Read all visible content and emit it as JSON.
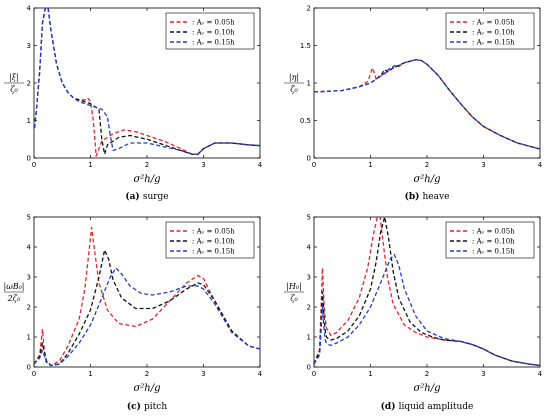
{
  "chart_data": [
    {
      "type": "line",
      "panel": "a",
      "caption_tag": "(a)",
      "caption_text": "surge",
      "xlabel": "σ²h/g",
      "ylabel_top": "|ξ|",
      "ylabel_bottom": "ζ₀",
      "xlim": [
        0,
        4
      ],
      "ylim": [
        0,
        4
      ],
      "xticks": [
        0,
        1,
        2,
        3,
        4
      ],
      "yticks": [
        0,
        1,
        2,
        3,
        4
      ],
      "legend_position": "top-right",
      "series": [
        {
          "name": "Aᵥ = 0.05h",
          "color": "#e0262a",
          "x": [
            0.01,
            0.05,
            0.1,
            0.15,
            0.2,
            0.25,
            0.3,
            0.4,
            0.5,
            0.6,
            0.7,
            0.8,
            0.9,
            0.95,
            1.0,
            1.05,
            1.1,
            1.2,
            1.4,
            1.6,
            1.8,
            2.0,
            2.3,
            2.6,
            2.8,
            2.9,
            3.0,
            3.2,
            3.5,
            3.8,
            4.0
          ],
          "y": [
            0.8,
            1.4,
            2.3,
            3.6,
            4.0,
            4.0,
            3.4,
            2.5,
            2.0,
            1.75,
            1.6,
            1.55,
            1.55,
            1.6,
            1.5,
            1.0,
            0.05,
            0.45,
            0.65,
            0.75,
            0.7,
            0.6,
            0.45,
            0.25,
            0.1,
            0.1,
            0.25,
            0.4,
            0.4,
            0.35,
            0.33
          ]
        },
        {
          "name": "Aᵥ = 0.10h",
          "color": "#111111",
          "x": [
            0.01,
            0.05,
            0.1,
            0.15,
            0.2,
            0.25,
            0.3,
            0.4,
            0.5,
            0.6,
            0.7,
            0.8,
            0.9,
            1.0,
            1.1,
            1.15,
            1.2,
            1.25,
            1.3,
            1.5,
            1.7,
            2.0,
            2.3,
            2.6,
            2.8,
            2.9,
            3.0,
            3.2,
            3.5,
            3.8,
            4.0
          ],
          "y": [
            0.8,
            1.4,
            2.3,
            3.6,
            4.0,
            4.0,
            3.4,
            2.5,
            2.0,
            1.75,
            1.6,
            1.55,
            1.5,
            1.45,
            1.35,
            1.3,
            0.5,
            0.1,
            0.35,
            0.55,
            0.6,
            0.5,
            0.35,
            0.2,
            0.1,
            0.1,
            0.25,
            0.4,
            0.4,
            0.35,
            0.33
          ]
        },
        {
          "name": "Aᵥ = 0.15h",
          "color": "#1f3fc8",
          "x": [
            0.01,
            0.05,
            0.1,
            0.15,
            0.2,
            0.25,
            0.3,
            0.4,
            0.5,
            0.6,
            0.7,
            0.8,
            0.9,
            1.0,
            1.1,
            1.2,
            1.3,
            1.35,
            1.4,
            1.5,
            1.7,
            2.0,
            2.3,
            2.6,
            2.8,
            2.9,
            3.0,
            3.2,
            3.5,
            3.8,
            4.0
          ],
          "y": [
            0.8,
            1.4,
            2.3,
            3.6,
            4.0,
            4.0,
            3.4,
            2.5,
            2.0,
            1.75,
            1.6,
            1.5,
            1.45,
            1.4,
            1.35,
            1.3,
            1.1,
            0.6,
            0.2,
            0.25,
            0.4,
            0.4,
            0.3,
            0.2,
            0.1,
            0.1,
            0.25,
            0.4,
            0.4,
            0.35,
            0.33
          ]
        }
      ]
    },
    {
      "type": "line",
      "panel": "b",
      "caption_tag": "(b)",
      "caption_text": "heave",
      "xlabel": "σ²h/g",
      "ylabel_top": "|η|",
      "ylabel_bottom": "ζ₀",
      "xlim": [
        0,
        4
      ],
      "ylim": [
        0,
        2
      ],
      "xticks": [
        0,
        1,
        2,
        3,
        4
      ],
      "yticks": [
        0,
        0.5,
        1,
        1.5,
        2
      ],
      "ytick_labels": [
        "0",
        "0.5",
        "1",
        "1.5",
        "2"
      ],
      "legend_position": "top-right",
      "series": [
        {
          "name": "Aᵥ = 0.05h",
          "color": "#e0262a",
          "x": [
            0,
            0.5,
            0.8,
            0.95,
            1.0,
            1.03,
            1.06,
            1.1,
            1.2,
            1.4,
            1.6,
            1.8,
            1.9,
            2.0,
            2.2,
            2.4,
            2.6,
            2.8,
            3.0,
            3.3,
            3.6,
            4.0
          ],
          "y": [
            0.88,
            0.9,
            0.95,
            1.02,
            1.12,
            1.2,
            1.15,
            1.05,
            1.1,
            1.2,
            1.27,
            1.31,
            1.3,
            1.25,
            1.1,
            0.9,
            0.72,
            0.55,
            0.42,
            0.3,
            0.2,
            0.12
          ]
        },
        {
          "name": "Aᵥ = 0.10h",
          "color": "#111111",
          "x": [
            0,
            0.5,
            0.8,
            1.0,
            1.1,
            1.2,
            1.25,
            1.3,
            1.4,
            1.6,
            1.8,
            1.9,
            2.0,
            2.2,
            2.4,
            2.6,
            2.8,
            3.0,
            3.3,
            3.6,
            4.0
          ],
          "y": [
            0.88,
            0.9,
            0.95,
            1.0,
            1.05,
            1.12,
            1.18,
            1.15,
            1.2,
            1.27,
            1.31,
            1.3,
            1.25,
            1.1,
            0.9,
            0.72,
            0.55,
            0.42,
            0.3,
            0.2,
            0.12
          ]
        },
        {
          "name": "Aᵥ = 0.15h",
          "color": "#1f3fc8",
          "x": [
            0,
            0.5,
            0.8,
            1.0,
            1.2,
            1.35,
            1.45,
            1.5,
            1.6,
            1.8,
            1.9,
            2.0,
            2.2,
            2.4,
            2.6,
            2.8,
            3.0,
            3.3,
            3.6,
            4.0
          ],
          "y": [
            0.88,
            0.9,
            0.95,
            1.0,
            1.1,
            1.2,
            1.24,
            1.22,
            1.27,
            1.31,
            1.3,
            1.25,
            1.1,
            0.9,
            0.72,
            0.55,
            0.42,
            0.3,
            0.2,
            0.12
          ]
        }
      ]
    },
    {
      "type": "line",
      "panel": "c",
      "caption_tag": "(c)",
      "caption_text": "pitch",
      "xlabel": "σ²h/g",
      "ylabel_top": "|ωB₀|",
      "ylabel_bottom": "2ζ₀",
      "xlim": [
        0,
        4
      ],
      "ylim": [
        0,
        5
      ],
      "xticks": [
        0,
        1,
        2,
        3,
        4
      ],
      "yticks": [
        0,
        1,
        2,
        3,
        4,
        5
      ],
      "legend_position": "top-right",
      "series": [
        {
          "name": "Aᵥ = 0.05h",
          "color": "#e0262a",
          "x": [
            0,
            0.1,
            0.15,
            0.18,
            0.22,
            0.3,
            0.45,
            0.6,
            0.8,
            0.9,
            0.97,
            1.02,
            1.07,
            1.15,
            1.3,
            1.5,
            1.8,
            2.1,
            2.4,
            2.7,
            2.9,
            3.0,
            3.2,
            3.5,
            3.8,
            4.0
          ],
          "y": [
            0.1,
            0.4,
            1.25,
            0.6,
            0.2,
            0.05,
            0.2,
            0.7,
            1.6,
            2.6,
            3.8,
            4.65,
            3.9,
            2.8,
            1.9,
            1.45,
            1.35,
            1.6,
            2.2,
            2.8,
            3.05,
            2.95,
            2.2,
            1.2,
            0.7,
            0.6
          ]
        },
        {
          "name": "Aᵥ = 0.10h",
          "color": "#111111",
          "x": [
            0,
            0.1,
            0.15,
            0.18,
            0.22,
            0.3,
            0.45,
            0.6,
            0.8,
            1.0,
            1.15,
            1.25,
            1.32,
            1.4,
            1.55,
            1.8,
            2.1,
            2.4,
            2.7,
            2.9,
            3.0,
            3.2,
            3.5,
            3.8,
            4.0
          ],
          "y": [
            0.1,
            0.35,
            0.8,
            0.5,
            0.2,
            0.05,
            0.1,
            0.45,
            1.1,
            1.9,
            3.0,
            3.9,
            3.6,
            2.9,
            2.3,
            1.95,
            1.95,
            2.2,
            2.6,
            2.8,
            2.75,
            2.2,
            1.2,
            0.7,
            0.6
          ]
        },
        {
          "name": "Aᵥ = 0.15h",
          "color": "#1f3fc8",
          "x": [
            0,
            0.1,
            0.15,
            0.18,
            0.22,
            0.3,
            0.45,
            0.6,
            0.8,
            1.0,
            1.2,
            1.35,
            1.45,
            1.55,
            1.7,
            1.9,
            2.1,
            2.4,
            2.7,
            2.9,
            3.0,
            3.2,
            3.5,
            3.8,
            4.0
          ],
          "y": [
            0.1,
            0.3,
            0.55,
            0.4,
            0.15,
            0.05,
            0.1,
            0.35,
            0.8,
            1.4,
            2.3,
            3.0,
            3.3,
            3.1,
            2.7,
            2.45,
            2.4,
            2.5,
            2.7,
            2.7,
            2.6,
            2.1,
            1.15,
            0.7,
            0.6
          ]
        }
      ]
    },
    {
      "type": "line",
      "panel": "d",
      "caption_tag": "(d)",
      "caption_text": "liquid amplitude",
      "xlabel": "σ²h/g",
      "ylabel_top": "|H₀|",
      "ylabel_bottom": "ζ₀",
      "xlim": [
        0,
        4
      ],
      "ylim": [
        0,
        5
      ],
      "xticks": [
        0,
        1,
        2,
        3,
        4
      ],
      "yticks": [
        0,
        1,
        2,
        3,
        4,
        5
      ],
      "legend_position": "top-right",
      "series": [
        {
          "name": "Aᵥ = 0.05h",
          "color": "#e0262a",
          "x": [
            0,
            0.1,
            0.15,
            0.18,
            0.2,
            0.22,
            0.25,
            0.3,
            0.4,
            0.6,
            0.8,
            0.95,
            1.05,
            1.12,
            1.17,
            1.22,
            1.3,
            1.4,
            1.6,
            1.8,
            2.0,
            2.3,
            2.6,
            2.8,
            3.0,
            3.2,
            3.5,
            3.8,
            4.0
          ],
          "y": [
            0.1,
            0.6,
            3.3,
            2.0,
            1.6,
            1.3,
            1.2,
            1.05,
            1.15,
            1.55,
            2.3,
            3.3,
            4.4,
            5.0,
            5.0,
            4.2,
            3.0,
            2.1,
            1.4,
            1.15,
            1.0,
            0.9,
            0.85,
            0.75,
            0.6,
            0.4,
            0.2,
            0.1,
            0.05
          ]
        },
        {
          "name": "Aᵥ = 0.10h",
          "color": "#111111",
          "x": [
            0,
            0.1,
            0.15,
            0.18,
            0.2,
            0.22,
            0.25,
            0.3,
            0.4,
            0.6,
            0.8,
            1.0,
            1.1,
            1.18,
            1.25,
            1.32,
            1.4,
            1.5,
            1.7,
            1.9,
            2.1,
            2.3,
            2.6,
            2.8,
            3.0,
            3.2,
            3.5,
            3.8,
            4.0
          ],
          "y": [
            0.1,
            0.5,
            2.5,
            1.6,
            1.2,
            1.0,
            0.95,
            0.9,
            0.95,
            1.2,
            1.7,
            2.6,
            3.5,
            4.5,
            5.0,
            4.3,
            3.2,
            2.3,
            1.5,
            1.15,
            1.0,
            0.9,
            0.85,
            0.75,
            0.6,
            0.4,
            0.2,
            0.1,
            0.05
          ]
        },
        {
          "name": "Aᵥ = 0.15h",
          "color": "#1f3fc8",
          "x": [
            0,
            0.1,
            0.15,
            0.18,
            0.2,
            0.22,
            0.25,
            0.3,
            0.4,
            0.6,
            0.8,
            1.0,
            1.2,
            1.35,
            1.42,
            1.5,
            1.6,
            1.8,
            2.0,
            2.3,
            2.6,
            2.8,
            3.0,
            3.2,
            3.5,
            3.8,
            4.0
          ],
          "y": [
            0.1,
            0.4,
            2.0,
            1.2,
            0.9,
            0.8,
            0.75,
            0.72,
            0.8,
            1.0,
            1.4,
            2.0,
            2.9,
            3.6,
            3.75,
            3.4,
            2.6,
            1.7,
            1.2,
            0.95,
            0.85,
            0.75,
            0.6,
            0.4,
            0.2,
            0.1,
            0.05
          ]
        }
      ]
    }
  ]
}
